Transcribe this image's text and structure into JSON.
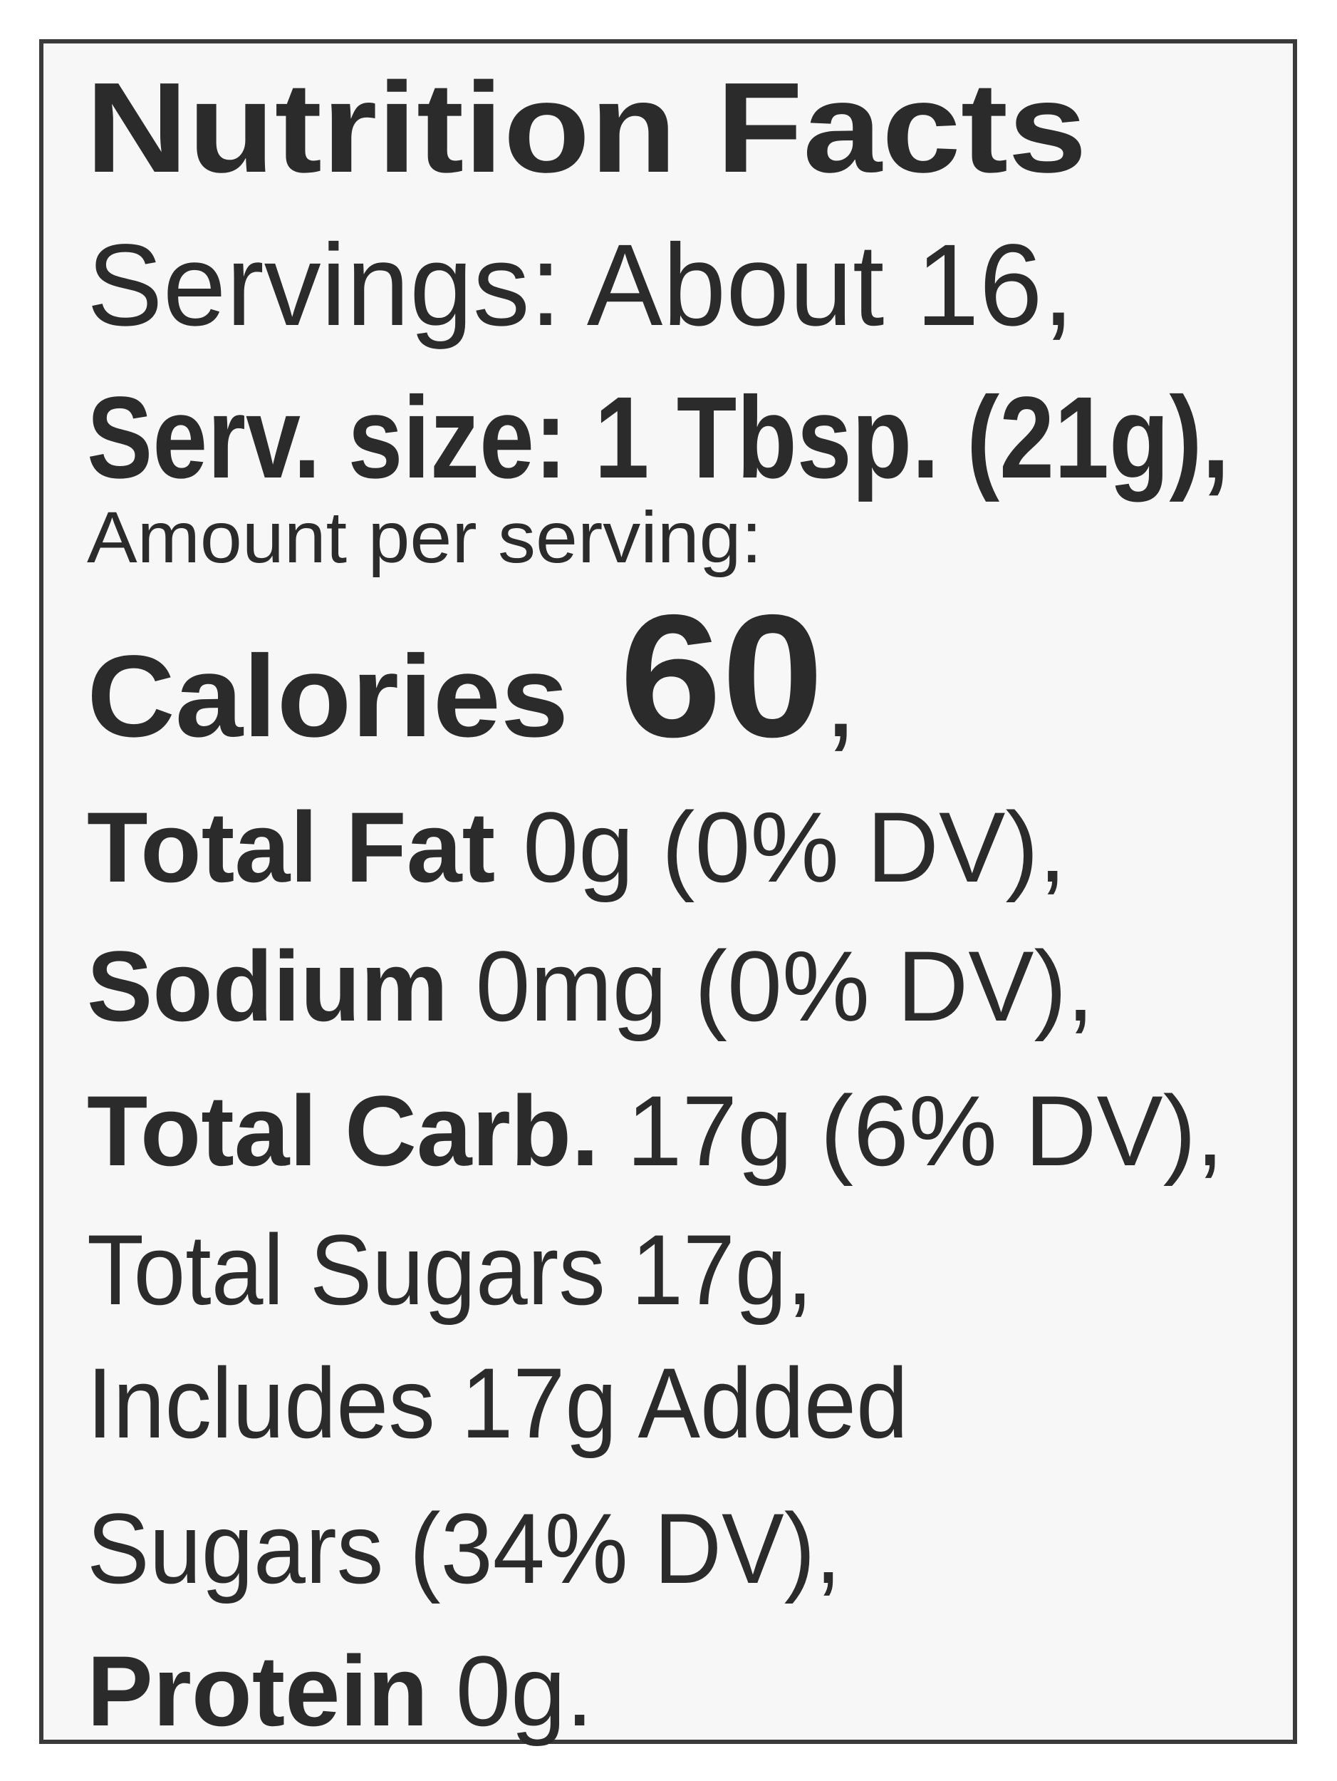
{
  "title": "Nutrition Facts",
  "lines": [
    {
      "segments": [
        {
          "text": "Servings: About 16,",
          "bold": false
        }
      ]
    },
    {
      "segments": [
        {
          "text": "Serv. size: 1 Tbsp. (21g),",
          "bold": true
        }
      ]
    },
    {
      "segments": [
        {
          "text": "Amount per serving:",
          "bold": false
        }
      ]
    },
    {
      "segments": [
        {
          "text": "Calories",
          "bold": true
        },
        {
          "text": " 60",
          "bold": true
        },
        {
          "text": ",",
          "bold": false
        }
      ]
    },
    {
      "segments": [
        {
          "text": "Total Fat",
          "bold": true
        },
        {
          "text": " 0g (0% DV),",
          "bold": false
        }
      ]
    },
    {
      "segments": [
        {
          "text": "Sodium",
          "bold": true
        },
        {
          "text": " 0mg (0% DV),",
          "bold": false
        }
      ]
    },
    {
      "segments": [
        {
          "text": "Total Carb.",
          "bold": true
        },
        {
          "text": " 17g (6% DV),",
          "bold": false
        }
      ]
    },
    {
      "segments": [
        {
          "text": "Total Sugars 17g,",
          "bold": false
        }
      ]
    },
    {
      "segments": [
        {
          "text": "Includes 17g Added",
          "bold": false
        }
      ]
    },
    {
      "segments": [
        {
          "text": "Sugars (34% DV),",
          "bold": false
        }
      ]
    },
    {
      "segments": [
        {
          "text": "Protein",
          "bold": true
        },
        {
          "text": " 0g.",
          "bold": false
        }
      ]
    }
  ]
}
